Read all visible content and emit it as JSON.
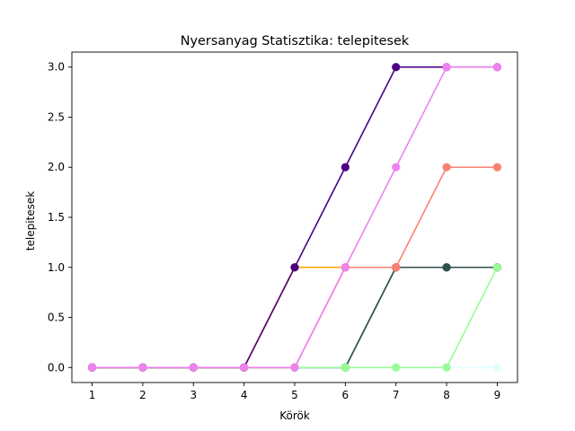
{
  "chart_data": {
    "type": "line",
    "title": "Nyersanyag Statisztika: telepitesek",
    "xlabel": "Körök",
    "ylabel": "telepitesek",
    "x": [
      1,
      2,
      3,
      4,
      5,
      6,
      7,
      8,
      9
    ],
    "x_ticks": [
      "1",
      "2",
      "3",
      "4",
      "5",
      "6",
      "7",
      "8",
      "9"
    ],
    "y_ticks": [
      "0.0",
      "0.5",
      "1.0",
      "1.5",
      "2.0",
      "2.5",
      "3.0"
    ],
    "xlim": [
      0.6,
      9.4
    ],
    "ylim": [
      -0.15,
      3.15
    ],
    "grid": false,
    "legend": "none",
    "series": [
      {
        "color": "#e0ffff",
        "values": [
          0,
          0,
          0,
          0,
          0,
          0,
          0,
          0,
          0
        ]
      },
      {
        "color": "#ffd700",
        "values": [
          0,
          0,
          0,
          0,
          1,
          1,
          1,
          1,
          1
        ]
      },
      {
        "color": "#ffa500",
        "values": [
          0,
          0,
          0,
          0,
          1,
          1,
          1,
          1,
          1
        ]
      },
      {
        "color": "#4682b4",
        "values": [
          0,
          0,
          0,
          0,
          0,
          0,
          1,
          1,
          1
        ]
      },
      {
        "color": "#2f4f4f",
        "values": [
          0,
          0,
          0,
          0,
          0,
          0,
          1,
          1,
          1
        ]
      },
      {
        "color": "#fa8072",
        "values": [
          0,
          0,
          0,
          0,
          0,
          1,
          1,
          2,
          2
        ]
      },
      {
        "color": "#98fb98",
        "values": [
          0,
          0,
          0,
          0,
          0,
          0,
          0,
          0,
          1
        ]
      },
      {
        "color": "#4b0082",
        "values": [
          0,
          0,
          0,
          0,
          1,
          2,
          3,
          3,
          3
        ]
      },
      {
        "color": "#ee82ee",
        "values": [
          0,
          0,
          0,
          0,
          0,
          1,
          2,
          3,
          3
        ]
      }
    ]
  }
}
